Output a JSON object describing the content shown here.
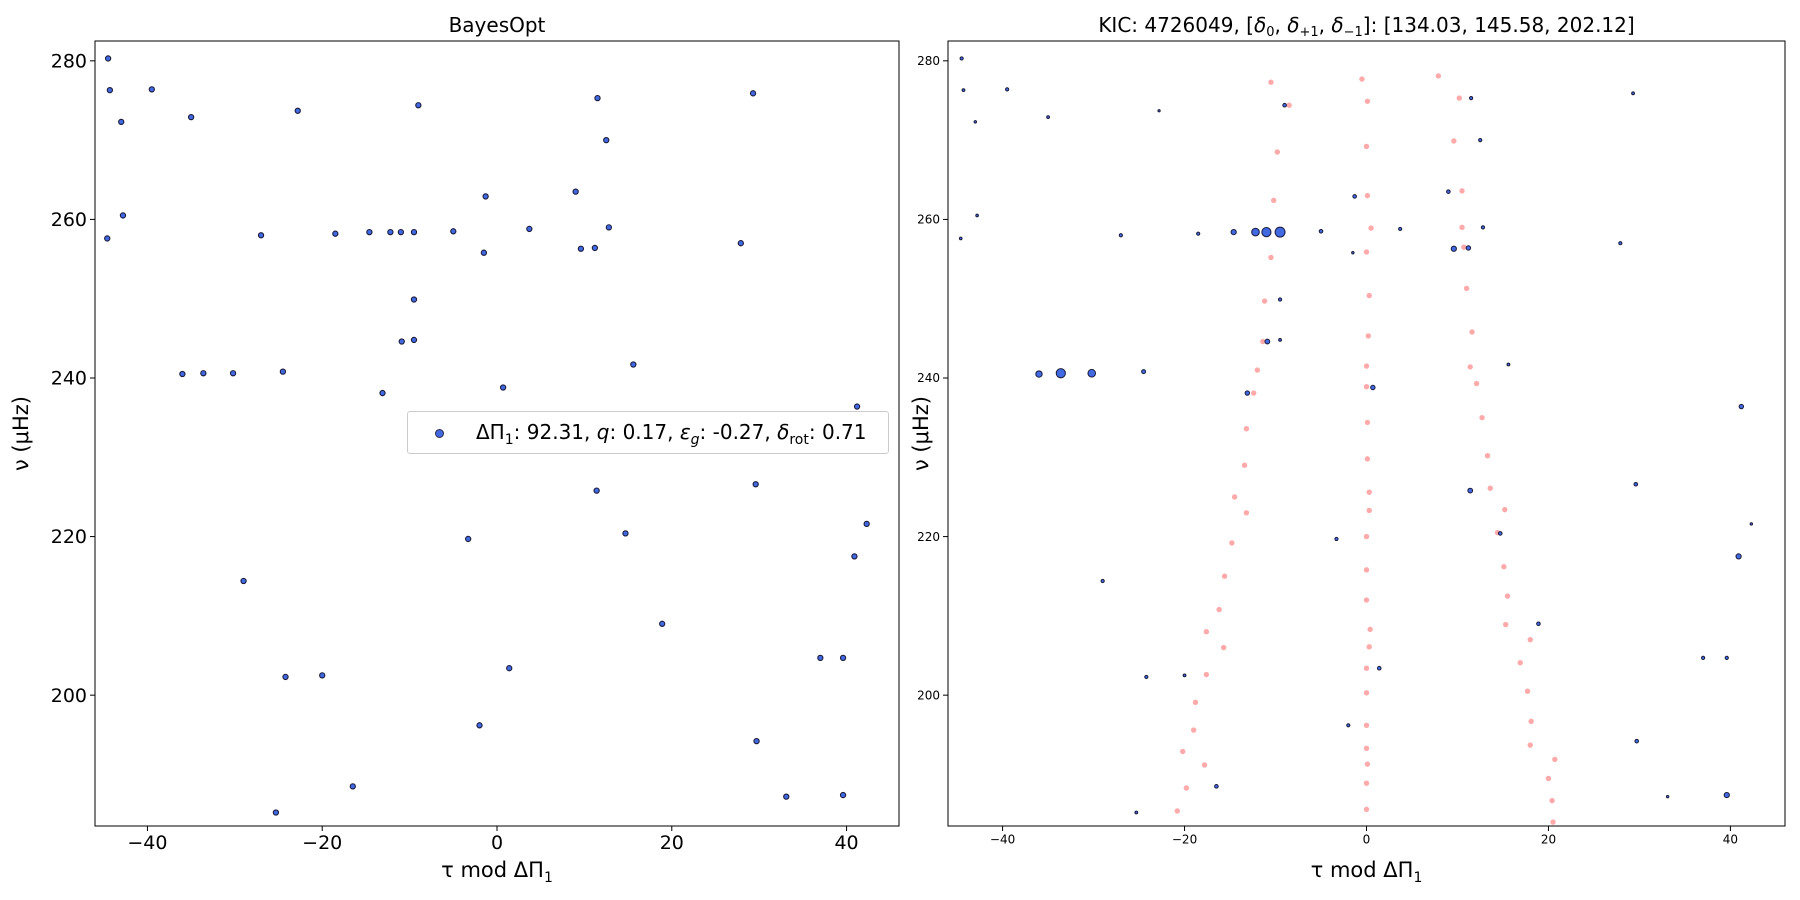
{
  "figure": {
    "background": "#ffffff"
  },
  "chart_data": [
    {
      "type": "scatter",
      "title": "BayesOpt",
      "xlabel": "τ mod ΔΠ",
      "xlabel_sub": "1",
      "ylabel": "ν (μHz)",
      "xlim": [
        -46,
        46
      ],
      "ylim": [
        183.5,
        282.5
      ],
      "xticks": [
        -40,
        -20,
        0,
        20,
        40
      ],
      "yticks": [
        200,
        220,
        240,
        260,
        280
      ],
      "grid": false,
      "legend": {
        "position": "center-right",
        "label": {
          "dp_name": "ΔΠ",
          "dp_sub": "1",
          "dp_val": "92.31",
          "q_name": "q",
          "q_val": "0.17",
          "eps_name": "ε",
          "eps_sub": "g",
          "eps_val": "-0.27",
          "rot_name": "δ",
          "rot_sub": "rot",
          "rot_val": "0.71"
        }
      },
      "colors": {
        "face": "#4169e1",
        "edge": "#1a1a3a"
      },
      "series": [
        {
          "points": [
            [
              -44.5,
              280.3
            ],
            [
              -44.3,
              276.3
            ],
            [
              -43.0,
              272.3
            ],
            [
              -39.5,
              276.4
            ],
            [
              -35.0,
              272.9
            ],
            [
              -42.8,
              260.5
            ],
            [
              -44.6,
              257.6
            ],
            [
              -22.8,
              273.7
            ],
            [
              -9.0,
              274.4
            ],
            [
              11.5,
              275.3
            ],
            [
              29.3,
              275.9
            ],
            [
              12.5,
              270.0
            ],
            [
              -1.3,
              262.9
            ],
            [
              9.0,
              263.5
            ],
            [
              -27.0,
              258.0
            ],
            [
              -18.5,
              258.2
            ],
            [
              -14.6,
              258.4
            ],
            [
              -12.2,
              258.4
            ],
            [
              -11.0,
              258.4
            ],
            [
              -9.5,
              258.4
            ],
            [
              -5.0,
              258.5
            ],
            [
              3.7,
              258.8
            ],
            [
              12.8,
              259.0
            ],
            [
              27.9,
              257.0
            ],
            [
              9.6,
              256.3
            ],
            [
              11.2,
              256.4
            ],
            [
              -1.5,
              255.8
            ],
            [
              -9.5,
              249.9
            ],
            [
              -10.9,
              244.6
            ],
            [
              -9.5,
              244.8
            ],
            [
              15.6,
              241.7
            ],
            [
              -36.0,
              240.5
            ],
            [
              -33.6,
              240.6
            ],
            [
              -30.2,
              240.6
            ],
            [
              -24.5,
              240.8
            ],
            [
              -13.1,
              238.1
            ],
            [
              0.7,
              238.8
            ],
            [
              41.2,
              236.4
            ],
            [
              11.4,
              225.8
            ],
            [
              29.6,
              226.6
            ],
            [
              14.7,
              220.4
            ],
            [
              42.3,
              221.6
            ],
            [
              -3.3,
              219.7
            ],
            [
              40.9,
              217.5
            ],
            [
              -29.0,
              214.4
            ],
            [
              18.9,
              209.0
            ],
            [
              37.0,
              204.7
            ],
            [
              39.6,
              204.7
            ],
            [
              1.4,
              203.4
            ],
            [
              -24.2,
              202.3
            ],
            [
              -20.0,
              202.5
            ],
            [
              -2.0,
              196.2
            ],
            [
              29.7,
              194.2
            ],
            [
              -16.5,
              188.5
            ],
            [
              33.1,
              187.2
            ],
            [
              39.6,
              187.4
            ],
            [
              -25.3,
              185.2
            ]
          ]
        }
      ]
    },
    {
      "type": "scatter",
      "title_prefix": "KIC: 4726049, [",
      "title_vars": [
        {
          "name": "δ",
          "sub": "0"
        },
        {
          "name": "δ",
          "sub": "+1"
        },
        {
          "name": "δ",
          "sub": "−1"
        }
      ],
      "title_suffix": "]: [134.03, 145.58, 202.12]",
      "xlabel": "τ mod ΔΠ",
      "xlabel_sub": "1",
      "ylabel": "ν (μHz)",
      "xlim": [
        -46,
        46
      ],
      "ylim": [
        183.5,
        282.5
      ],
      "xticks": [
        -40,
        -20,
        0,
        20,
        40
      ],
      "yticks": [
        200,
        220,
        240,
        260,
        280
      ],
      "grid": false,
      "colors": {
        "face": "#4169e1",
        "edge": "#1a1a3a",
        "model": "#ffaaaa"
      },
      "observed": [
        [
          -44.5,
          280.3,
          1.6
        ],
        [
          -44.3,
          276.3,
          1.4
        ],
        [
          -43.0,
          272.3,
          1.2
        ],
        [
          -39.5,
          276.4,
          1.6
        ],
        [
          -35.0,
          272.9,
          1.4
        ],
        [
          -42.8,
          260.5,
          1.3
        ],
        [
          -44.6,
          257.6,
          1.3
        ],
        [
          -22.8,
          273.7,
          1.1
        ],
        [
          -9.0,
          274.4,
          1.8
        ],
        [
          11.5,
          275.3,
          1.6
        ],
        [
          29.3,
          275.9,
          1.4
        ],
        [
          12.5,
          270.0,
          1.6
        ],
        [
          -1.3,
          262.9,
          1.8
        ],
        [
          9.0,
          263.5,
          1.8
        ],
        [
          -27.0,
          258.0,
          1.6
        ],
        [
          -18.5,
          258.2,
          1.6
        ],
        [
          -14.6,
          258.4,
          2.6
        ],
        [
          -12.2,
          258.4,
          3.8
        ],
        [
          -11.0,
          258.4,
          4.6
        ],
        [
          -9.5,
          258.4,
          5.0
        ],
        [
          -5.0,
          258.5,
          1.8
        ],
        [
          3.7,
          258.8,
          1.6
        ],
        [
          12.8,
          259.0,
          1.6
        ],
        [
          27.9,
          257.0,
          1.6
        ],
        [
          9.6,
          256.3,
          2.6
        ],
        [
          11.2,
          256.4,
          2.2
        ],
        [
          -1.5,
          255.8,
          1.2
        ],
        [
          -9.5,
          249.9,
          1.6
        ],
        [
          -10.9,
          244.6,
          2.4
        ],
        [
          -9.5,
          244.8,
          1.4
        ],
        [
          15.6,
          241.7,
          1.4
        ],
        [
          -36.0,
          240.5,
          3.2
        ],
        [
          -33.6,
          240.6,
          4.6
        ],
        [
          -30.2,
          240.6,
          3.8
        ],
        [
          -24.5,
          240.8,
          2.0
        ],
        [
          -13.1,
          238.1,
          2.2
        ],
        [
          0.7,
          238.8,
          2.2
        ],
        [
          41.2,
          236.4,
          2.2
        ],
        [
          11.4,
          225.8,
          2.4
        ],
        [
          29.6,
          226.6,
          1.8
        ],
        [
          14.7,
          220.4,
          1.8
        ],
        [
          42.3,
          221.6,
          1.2
        ],
        [
          -3.3,
          219.7,
          1.6
        ],
        [
          40.9,
          217.5,
          2.6
        ],
        [
          -29.0,
          214.4,
          1.6
        ],
        [
          18.9,
          209.0,
          1.8
        ],
        [
          37.0,
          204.7,
          1.6
        ],
        [
          39.6,
          204.7,
          1.6
        ],
        [
          1.4,
          203.4,
          1.8
        ],
        [
          -24.2,
          202.3,
          1.6
        ],
        [
          -20.0,
          202.5,
          1.4
        ],
        [
          -2.0,
          196.2,
          1.6
        ],
        [
          29.7,
          194.2,
          1.8
        ],
        [
          -16.5,
          188.5,
          1.8
        ],
        [
          33.1,
          187.2,
          1.2
        ],
        [
          39.6,
          187.4,
          2.6
        ],
        [
          -25.3,
          185.2,
          1.4
        ]
      ],
      "model": [
        [
          -10.5,
          277.3
        ],
        [
          -8.5,
          274.4
        ],
        [
          -9.8,
          268.5
        ],
        [
          -10.2,
          262.4
        ],
        [
          -10.5,
          255.2
        ],
        [
          -11.2,
          249.7
        ],
        [
          -11.4,
          244.6
        ],
        [
          -12.0,
          241.0
        ],
        [
          -12.4,
          238.1
        ],
        [
          -13.2,
          233.6
        ],
        [
          -13.4,
          229.0
        ],
        [
          -14.5,
          225.0
        ],
        [
          -13.2,
          223.0
        ],
        [
          -14.8,
          219.2
        ],
        [
          -15.6,
          215.0
        ],
        [
          -16.2,
          210.8
        ],
        [
          -17.6,
          208.0
        ],
        [
          -15.7,
          206.0
        ],
        [
          -17.6,
          202.6
        ],
        [
          -18.8,
          199.1
        ],
        [
          -19.0,
          195.6
        ],
        [
          -17.8,
          191.2
        ],
        [
          -20.2,
          192.9
        ],
        [
          -19.8,
          188.3
        ],
        [
          -20.8,
          185.4
        ],
        [
          -0.5,
          277.7
        ],
        [
          0.1,
          274.9
        ],
        [
          0.0,
          269.2
        ],
        [
          0.1,
          263.0
        ],
        [
          0.5,
          258.9
        ],
        [
          0.0,
          255.9
        ],
        [
          0.3,
          250.4
        ],
        [
          0.2,
          245.3
        ],
        [
          0.0,
          241.5
        ],
        [
          0.0,
          238.9
        ],
        [
          0.1,
          234.4
        ],
        [
          0.1,
          229.8
        ],
        [
          0.3,
          225.6
        ],
        [
          0.3,
          223.3
        ],
        [
          0.0,
          220.0
        ],
        [
          0.0,
          215.8
        ],
        [
          0.0,
          212.0
        ],
        [
          0.4,
          208.3
        ],
        [
          0.3,
          206.1
        ],
        [
          0.0,
          203.4
        ],
        [
          0.0,
          200.3
        ],
        [
          0.0,
          196.2
        ],
        [
          0.0,
          193.3
        ],
        [
          0.1,
          191.3
        ],
        [
          0.0,
          188.9
        ],
        [
          0.0,
          185.6
        ],
        [
          7.9,
          278.1
        ],
        [
          10.2,
          275.3
        ],
        [
          9.6,
          269.9
        ],
        [
          10.5,
          263.6
        ],
        [
          10.5,
          259.0
        ],
        [
          10.7,
          256.5
        ],
        [
          11.0,
          251.3
        ],
        [
          11.6,
          245.8
        ],
        [
          11.4,
          241.4
        ],
        [
          12.1,
          239.3
        ],
        [
          12.7,
          235.0
        ],
        [
          13.3,
          230.2
        ],
        [
          13.6,
          226.1
        ],
        [
          15.2,
          223.4
        ],
        [
          14.4,
          220.5
        ],
        [
          15.1,
          216.2
        ],
        [
          15.5,
          212.5
        ],
        [
          15.3,
          208.9
        ],
        [
          18.0,
          207.0
        ],
        [
          16.9,
          204.1
        ],
        [
          17.7,
          200.5
        ],
        [
          18.1,
          196.7
        ],
        [
          18.0,
          193.7
        ],
        [
          20.7,
          191.9
        ],
        [
          20.0,
          189.5
        ],
        [
          20.4,
          186.7
        ],
        [
          20.5,
          184.0
        ]
      ]
    }
  ]
}
